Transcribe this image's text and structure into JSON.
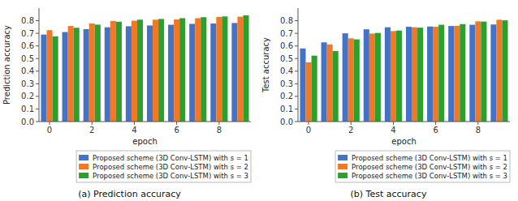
{
  "chart_data": [
    {
      "type": "bar",
      "title": "(a)  Prediction accuracy",
      "xlabel": "epoch",
      "ylabel": "Prediction accuracy",
      "categories": [
        "0",
        null,
        "2",
        null,
        "4",
        null,
        "6",
        null,
        "8",
        null
      ],
      "series": [
        {
          "name": "Proposed scheme (3D Conv-LSTM) with s = 1",
          "color": "#4472c4",
          "values": [
            0.69,
            0.71,
            0.733,
            0.748,
            0.756,
            0.762,
            0.768,
            0.775,
            0.778,
            0.782
          ]
        },
        {
          "name": "Proposed scheme (3D Conv-LSTM) with s = 2",
          "color": "#f07826",
          "values": [
            0.725,
            0.758,
            0.778,
            0.797,
            0.8,
            0.808,
            0.81,
            0.82,
            0.83,
            0.832
          ]
        },
        {
          "name": "Proposed scheme (3D Conv-LSTM) with s = 3",
          "color": "#2ca02c",
          "values": [
            0.676,
            0.744,
            0.769,
            0.792,
            0.808,
            0.814,
            0.82,
            0.828,
            0.834,
            0.843
          ]
        }
      ],
      "ylim": [
        0.0,
        0.9
      ],
      "yticks": [
        {
          "value": 0.0,
          "label": "0.0"
        },
        0.1,
        0.2,
        0.3,
        0.4,
        0.5,
        0.6,
        0.7,
        0.8
      ],
      "legend": "lower right",
      "grid": false
    },
    {
      "type": "bar",
      "title": "(b)  Test accuracy",
      "xlabel": "epoch",
      "ylabel": "Test accuracy",
      "categories": [
        "0",
        null,
        "2",
        null,
        "4",
        null,
        "6",
        null,
        "8",
        null
      ],
      "series": [
        {
          "name": "Proposed scheme (3D Conv-LSTM) with s = 1",
          "color": "#4472c4",
          "values": [
            0.58,
            0.628,
            0.7,
            0.732,
            0.748,
            0.752,
            0.754,
            0.758,
            0.768,
            0.77
          ]
        },
        {
          "name": "Proposed scheme (3D Conv-LSTM) with s = 2",
          "color": "#f07826",
          "values": [
            0.47,
            0.612,
            0.66,
            0.698,
            0.718,
            0.748,
            0.752,
            0.76,
            0.795,
            0.808
          ]
        },
        {
          "name": "Proposed scheme (3D Conv-LSTM) with s = 3",
          "color": "#2ca02c",
          "values": [
            0.523,
            0.56,
            0.652,
            0.703,
            0.722,
            0.745,
            0.768,
            0.773,
            0.793,
            0.803
          ]
        }
      ],
      "ylim": [
        0.0,
        0.9
      ],
      "yticks": [
        {
          "value": 0.0,
          "label": "0.0"
        },
        0.1,
        0.2,
        0.3,
        0.4,
        0.5,
        0.6,
        0.7,
        0.8
      ],
      "legend": "lower right",
      "grid": false
    }
  ]
}
